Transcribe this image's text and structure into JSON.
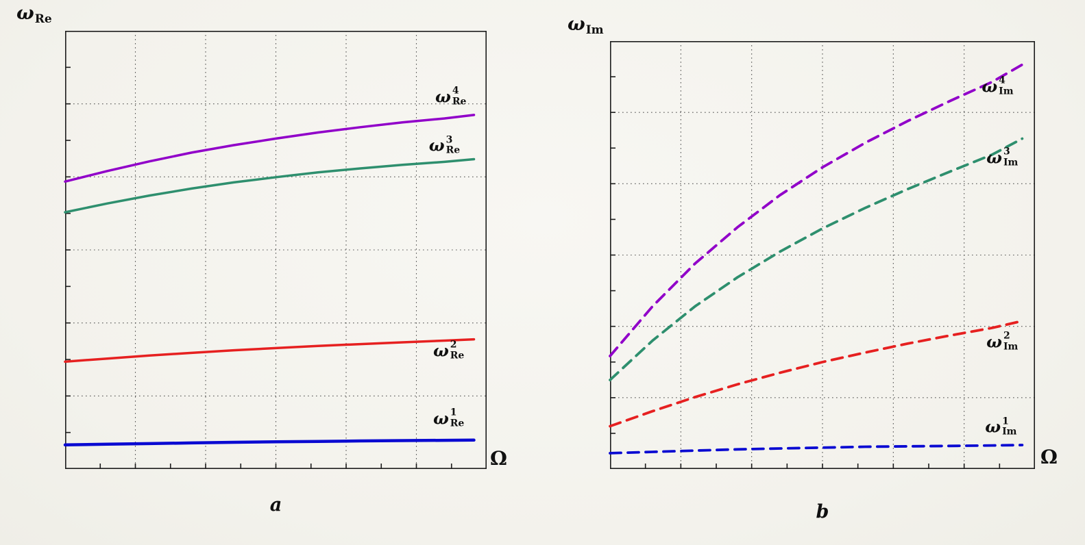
{
  "page": {
    "background_color": "#f5f4ef",
    "axis_color": "#1c1c1c",
    "grid_color": "#3a3a3a"
  },
  "chart_data": [
    {
      "id": "a",
      "type": "line",
      "title": "a",
      "xlabel": "Ω",
      "ylabel": {
        "base": "ω",
        "sub": "Re"
      },
      "line_style": "solid",
      "grid": {
        "x_divisions": 6,
        "y_divisions": 6,
        "style": "dotted"
      },
      "ticks": {
        "x_subdivisions": 12,
        "y_subdivisions": 12
      },
      "xlim": [
        0,
        1
      ],
      "ylim": [
        0,
        1
      ],
      "x": [
        0,
        0.1,
        0.2,
        0.3,
        0.4,
        0.5,
        0.6,
        0.7,
        0.8,
        0.9,
        0.97
      ],
      "series": [
        {
          "name": "omega-re-1",
          "label": {
            "base": "ω",
            "sup": "1",
            "sub": "Re"
          },
          "color": "#0a0ad2",
          "width": 4.5,
          "values": [
            0.055,
            0.0565,
            0.058,
            0.0595,
            0.061,
            0.062,
            0.063,
            0.064,
            0.0648,
            0.0655,
            0.066
          ],
          "label_pos": [
            0.91,
            0.885
          ]
        },
        {
          "name": "omega-re-2",
          "label": {
            "base": "ω",
            "sup": "2",
            "sub": "Re"
          },
          "color": "#e62020",
          "width": 3.5,
          "values": [
            0.245,
            0.252,
            0.259,
            0.265,
            0.271,
            0.276,
            0.281,
            0.285,
            0.289,
            0.293,
            0.296
          ],
          "label_pos": [
            0.91,
            0.73
          ]
        },
        {
          "name": "omega-re-3",
          "label": {
            "base": "ω",
            "sup": "3",
            "sub": "Re"
          },
          "color": "#2e8f6e",
          "width": 3.5,
          "values": [
            0.586,
            0.606,
            0.624,
            0.64,
            0.654,
            0.666,
            0.677,
            0.686,
            0.694,
            0.701,
            0.707
          ],
          "label_pos": [
            0.9,
            0.262
          ]
        },
        {
          "name": "omega-re-4",
          "label": {
            "base": "ω",
            "sup": "4",
            "sub": "Re"
          },
          "color": "#9100c9",
          "width": 3.5,
          "values": [
            0.656,
            0.68,
            0.702,
            0.722,
            0.739,
            0.754,
            0.768,
            0.78,
            0.791,
            0.8,
            0.808
          ],
          "label_pos": [
            0.915,
            0.15
          ]
        }
      ]
    },
    {
      "id": "b",
      "type": "line",
      "title": "b",
      "xlabel": "Ω",
      "ylabel": {
        "base": "ω",
        "sub": "Im"
      },
      "line_style": "dashed",
      "grid": {
        "x_divisions": 6,
        "y_divisions": 6,
        "style": "dotted"
      },
      "ticks": {
        "x_subdivisions": 12,
        "y_subdivisions": 12
      },
      "xlim": [
        0,
        1
      ],
      "ylim": [
        0,
        1
      ],
      "x": [
        0,
        0.1,
        0.2,
        0.3,
        0.4,
        0.5,
        0.6,
        0.7,
        0.8,
        0.9,
        0.97
      ],
      "series": [
        {
          "name": "omega-im-1",
          "label": {
            "base": "ω",
            "sup": "1",
            "sub": "Im"
          },
          "color": "#0a0ad2",
          "width": 3.8,
          "values": [
            0.037,
            0.04,
            0.043,
            0.046,
            0.048,
            0.05,
            0.052,
            0.053,
            0.054,
            0.055,
            0.056
          ],
          "label_pos": [
            0.92,
            0.902
          ]
        },
        {
          "name": "omega-im-2",
          "label": {
            "base": "ω",
            "sup": "2",
            "sub": "Im"
          },
          "color": "#e62020",
          "width": 3.8,
          "values": [
            0.1,
            0.135,
            0.168,
            0.198,
            0.225,
            0.25,
            0.272,
            0.293,
            0.312,
            0.33,
            0.346
          ],
          "label_pos": [
            0.923,
            0.703
          ]
        },
        {
          "name": "omega-im-3",
          "label": {
            "base": "ω",
            "sup": "3",
            "sub": "Im"
          },
          "color": "#2e8f6e",
          "width": 3.8,
          "values": [
            0.208,
            0.3,
            0.38,
            0.448,
            0.508,
            0.562,
            0.61,
            0.654,
            0.695,
            0.735,
            0.772
          ],
          "label_pos": [
            0.923,
            0.272
          ]
        },
        {
          "name": "omega-im-4",
          "label": {
            "base": "ω",
            "sup": "4",
            "sub": "Im"
          },
          "color": "#9100c9",
          "width": 3.8,
          "values": [
            0.264,
            0.38,
            0.48,
            0.565,
            0.64,
            0.705,
            0.762,
            0.813,
            0.86,
            0.905,
            0.945
          ],
          "label_pos": [
            0.912,
            0.106
          ]
        }
      ]
    }
  ]
}
